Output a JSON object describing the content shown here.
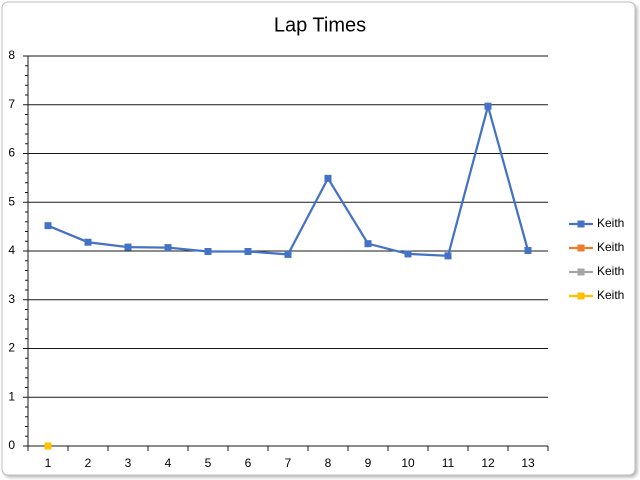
{
  "chart_data": {
    "type": "line",
    "title": "Lap Times",
    "categories": [
      "1",
      "2",
      "3",
      "4",
      "5",
      "6",
      "7",
      "8",
      "9",
      "10",
      "11",
      "12",
      "13"
    ],
    "series": [
      {
        "name": "Keith",
        "color": "#4472c4",
        "values": [
          4.52,
          4.18,
          4.08,
          4.07,
          3.99,
          3.99,
          3.93,
          5.49,
          4.15,
          3.94,
          3.9,
          6.97,
          4.01
        ]
      },
      {
        "name": "Keith",
        "color": "#ed7d31",
        "values": [
          null,
          null,
          null,
          null,
          null,
          null,
          null,
          null,
          null,
          null,
          null,
          null,
          null
        ]
      },
      {
        "name": "Keith",
        "color": "#a5a5a5",
        "values": [
          null,
          null,
          null,
          null,
          null,
          null,
          null,
          null,
          null,
          null,
          null,
          null,
          null
        ]
      },
      {
        "name": "Keith",
        "color": "#ffc000",
        "values": [
          0,
          null,
          null,
          null,
          null,
          null,
          null,
          null,
          null,
          null,
          null,
          null,
          null
        ]
      }
    ],
    "ylim": [
      0,
      8
    ],
    "yticks": [
      0,
      1,
      2,
      3,
      4,
      5,
      6,
      7,
      8
    ],
    "grid": true,
    "legend": "right"
  }
}
